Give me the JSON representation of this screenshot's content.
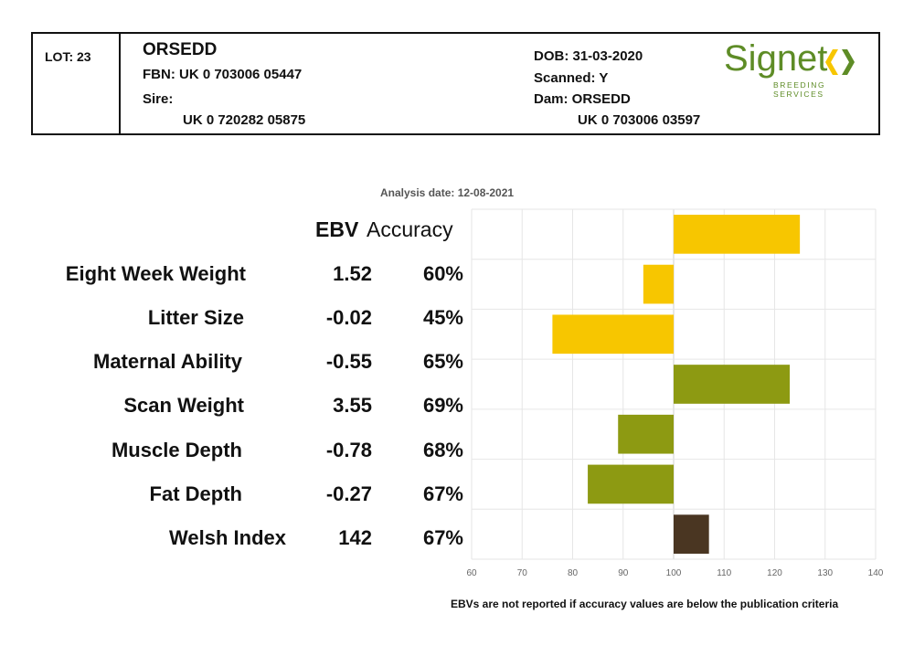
{
  "header": {
    "lot": "LOT: 23",
    "name": "ORSEDD",
    "fbn": "FBN: UK 0 703006 05447",
    "sire_label": "Sire:",
    "sire_id": "UK 0 720282 05875",
    "dob": "DOB: 31-03-2020",
    "scanned": "Scanned: Y",
    "dam": "Dam: ORSEDD",
    "dam_id": "UK 0 703006 03597",
    "logo_word": "Signet",
    "logo_sub": "BREEDING SERVICES",
    "logo_color": "#5e8c26"
  },
  "analysis_date": "Analysis date: 12-08-2021",
  "columns": {
    "ebv": "EBV",
    "accuracy": "Accuracy"
  },
  "traits": [
    {
      "name": "Eight Week Weight",
      "ebv": "1.52",
      "accuracy": "60%"
    },
    {
      "name": "Litter Size",
      "ebv": "-0.02",
      "accuracy": "45%"
    },
    {
      "name": "Maternal Ability",
      "ebv": "-0.55",
      "accuracy": "65%"
    },
    {
      "name": "Scan Weight",
      "ebv": "3.55",
      "accuracy": "69%"
    },
    {
      "name": "Muscle Depth",
      "ebv": "-0.78",
      "accuracy": "68%"
    },
    {
      "name": "Fat Depth",
      "ebv": "-0.27",
      "accuracy": "67%"
    },
    {
      "name": "Welsh Index",
      "ebv": "142",
      "accuracy": "67%"
    }
  ],
  "chart_data": {
    "type": "bar",
    "orientation": "horizontal",
    "baseline": 100,
    "categories": [
      "Eight Week Weight",
      "Litter Size",
      "Maternal Ability",
      "Scan Weight",
      "Muscle Depth",
      "Fat Depth",
      "Welsh Index"
    ],
    "values": [
      125,
      94,
      76,
      123,
      89,
      83,
      107
    ],
    "bar_colors": [
      "#f7c600",
      "#f7c600",
      "#f7c600",
      "#8d9a12",
      "#8d9a12",
      "#8d9a12",
      "#4a3622"
    ],
    "xlim": [
      60,
      140
    ],
    "xticks": [
      60,
      70,
      80,
      90,
      100,
      110,
      120,
      130,
      140
    ],
    "grid": true
  },
  "footnote": "EBVs are not reported if accuracy values are below the publication criteria"
}
